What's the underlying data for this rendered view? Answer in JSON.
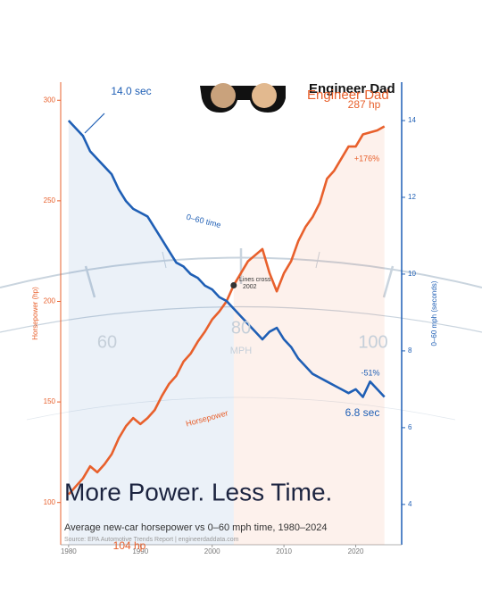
{
  "chart_data": {
    "type": "line",
    "brand": "Engineer Dad",
    "title": "More Power. Less Time.",
    "subtitle": "Average new-car horsepower vs 0–60 mph time, 1980–2024",
    "source": "Source: EPA Automotive Trends Report  |  engineerdaddata.com",
    "ylabel": "Horsepower (hp)",
    "y2label": "0–60 mph (seconds)",
    "background_labels": [
      "60",
      "80",
      "MPH",
      "100"
    ],
    "x": [
      1980,
      1981,
      1982,
      1983,
      1984,
      1985,
      1986,
      1987,
      1988,
      1989,
      1990,
      1991,
      1992,
      1993,
      1994,
      1995,
      1996,
      1997,
      1998,
      1999,
      2000,
      2001,
      2002,
      2003,
      2004,
      2005,
      2006,
      2007,
      2008,
      2009,
      2010,
      2011,
      2012,
      2013,
      2014,
      2015,
      2016,
      2017,
      2018,
      2019,
      2020,
      2021,
      2022,
      2023,
      2024
    ],
    "series": [
      {
        "name": "Horsepower",
        "color": "#e8602c",
        "axis": "y",
        "values": [
          104,
          108,
          112,
          118,
          115,
          119,
          124,
          132,
          138,
          142,
          139,
          142,
          146,
          153,
          159,
          163,
          170,
          174,
          180,
          185,
          191,
          195,
          200,
          208,
          214,
          220,
          223,
          226,
          214,
          205,
          214,
          220,
          230,
          237,
          242,
          249,
          261,
          265,
          271,
          277,
          277,
          283,
          284,
          285,
          287
        ]
      },
      {
        "name": "0–60 time",
        "color": "#1f5fb5",
        "axis": "y2",
        "values": [
          14.0,
          13.8,
          13.6,
          13.2,
          13.0,
          12.8,
          12.6,
          12.2,
          11.9,
          11.7,
          11.6,
          11.5,
          11.2,
          10.9,
          10.6,
          10.3,
          10.2,
          10.0,
          9.9,
          9.7,
          9.6,
          9.4,
          9.3,
          9.1,
          8.9,
          8.7,
          8.5,
          8.3,
          8.5,
          8.6,
          8.3,
          8.1,
          7.8,
          7.6,
          7.4,
          7.3,
          7.2,
          7.1,
          7.0,
          6.9,
          7.0,
          6.8,
          7.2,
          7.0,
          6.8
        ]
      }
    ],
    "annotations": {
      "hp_start": "104 hp",
      "hp_end": "287 hp",
      "hp_change": "+176%",
      "hp_line": "Horsepower",
      "time_start": "14.0 sec",
      "time_end": "6.8 sec",
      "time_change": "-51%",
      "time_line": "0–60 time",
      "cross": "Lines cross",
      "cross_year": "2002"
    },
    "xlim": [
      1978.9,
      2026.4
    ],
    "xticks": [
      1980,
      1990,
      2000,
      2010,
      2020
    ],
    "ylim": [
      79,
      309
    ],
    "yticks": [
      100,
      150,
      200,
      250,
      300
    ],
    "y2lim": [
      2.95,
      15
    ],
    "y2ticks": [
      4,
      6,
      8,
      10,
      12,
      14
    ]
  }
}
